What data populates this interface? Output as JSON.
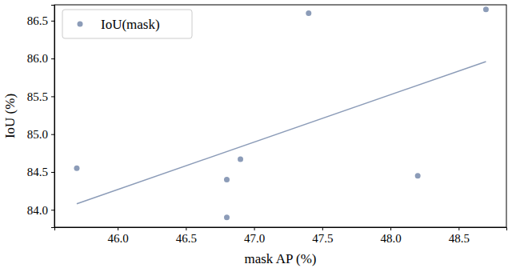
{
  "chart_data": {
    "type": "scatter",
    "x_label": "mask AP (%)",
    "y_label": "IoU (%)",
    "series": [
      {
        "name": "IoU(mask)",
        "type": "scatter",
        "color": "#8c9cb8",
        "marker": "circle",
        "x": [
          45.7,
          46.8,
          46.8,
          46.9,
          47.4,
          48.2,
          48.7
        ],
        "values": [
          84.55,
          84.4,
          83.9,
          84.67,
          86.6,
          84.45,
          86.65
        ]
      },
      {
        "type": "line",
        "color": "#8c9cb8",
        "line_style": "solid",
        "x": [
          45.7,
          48.7
        ],
        "values": [
          84.08,
          85.96
        ]
      }
    ],
    "xlim": [
      45.536,
      48.85
    ],
    "ylim": [
      83.77,
      86.71
    ],
    "xticks": [
      {
        "value": 46,
        "label": "46.0"
      },
      {
        "value": 46.5,
        "label": "46.5"
      },
      {
        "value": 47,
        "label": "47.0"
      },
      {
        "value": 47.5,
        "label": "47.5"
      },
      {
        "value": 48,
        "label": "48.0"
      },
      {
        "value": 48.5,
        "label": "48.5"
      }
    ],
    "yticks": [
      {
        "value": 84,
        "label": "84.0"
      },
      {
        "value": 84.5,
        "label": "84.5"
      },
      {
        "value": 85,
        "label": "85.0"
      },
      {
        "value": 85.5,
        "label": "85.5"
      },
      {
        "value": 86,
        "label": "86.0"
      },
      {
        "value": 86.5,
        "label": "86.5"
      }
    ],
    "legend": "upper left",
    "grid": false
  }
}
